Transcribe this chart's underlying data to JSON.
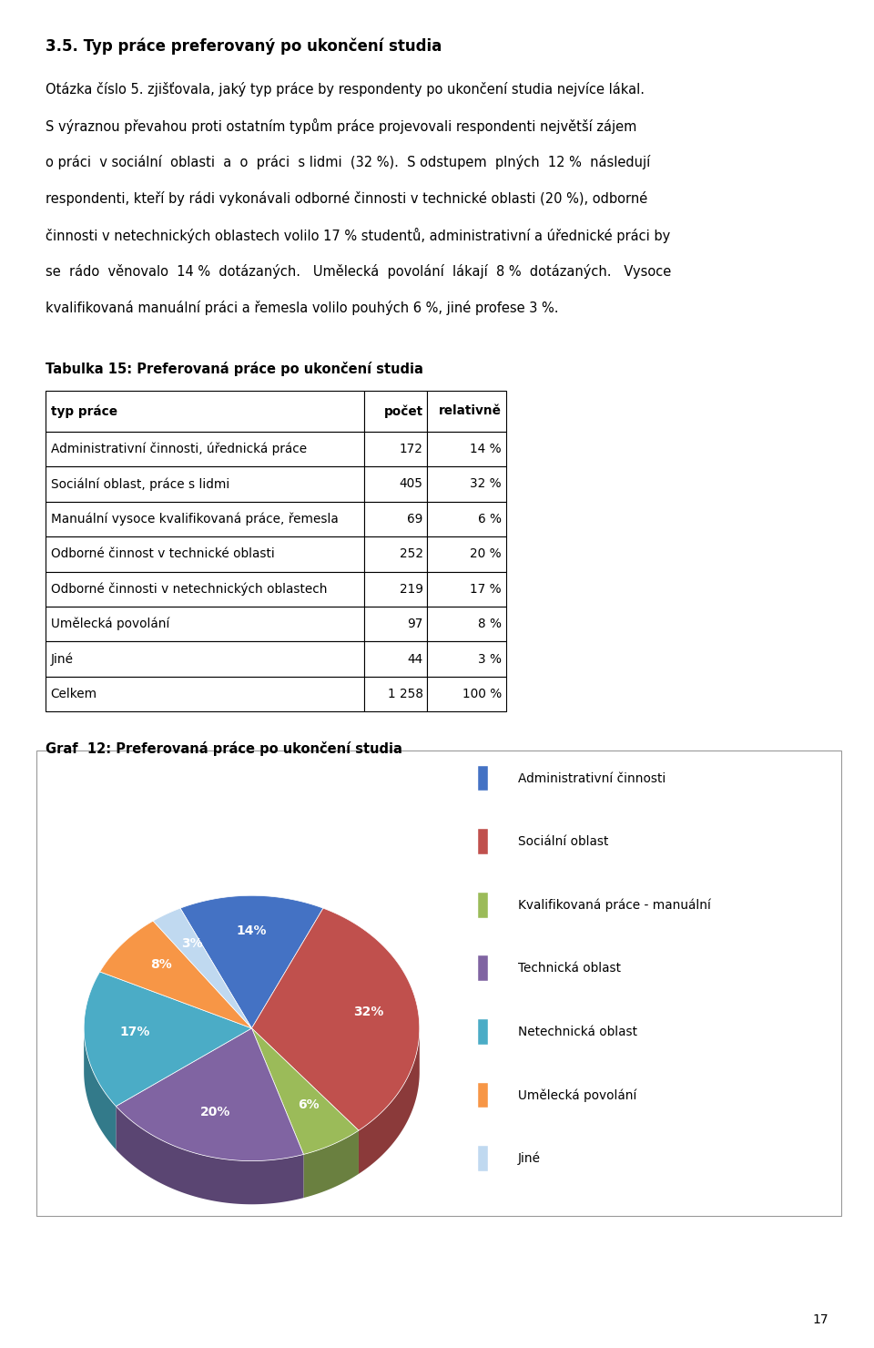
{
  "title_section": "3.5. Typ práce preferovaný po ukončení studia",
  "body_text": [
    "Otázka číslo 5. zjišťovala, jaký typ práce by respondenty po ukončení studia nejvíce lákal.",
    "S výraznou převahou proti ostatním typům práce projevovali respondenti největší zájem",
    "o práci  v sociální  oblasti  a  o  práci  s lidmi  (32 %).  S odstupem  plných  12 %  následují",
    "respondenti, kteří by rádi vykonávali odborné činnosti v technické oblasti (20 %), odborné",
    "činnosti v netechnických oblastech volilo 17 % studentů, administrativní a úřednické práci by",
    "se  rádo  věnovalo  14 %  dotázaných.   Umělecká  povolání  lákají  8 %  dotázaných.   Vysoce",
    "kvalifikovaná manuální práci a řemesla volilo pouhých 6 %, jiné profese 3 %."
  ],
  "table_title": "Tabulka 15: Preferovaná práce po ukončení studia",
  "table_headers": [
    "typ práce",
    "počet",
    "relativně"
  ],
  "table_rows": [
    [
      "Administrativní činnosti, úřednická práce",
      "172",
      "14 %"
    ],
    [
      "Sociální oblast, práce s lidmi",
      "405",
      "32 %"
    ],
    [
      "Manuální vysoce kvalifikovaná práce, řemesla",
      "69",
      "6 %"
    ],
    [
      "Odborné činnost v technické oblasti",
      "252",
      "20 %"
    ],
    [
      "Odborné činnosti v netechnických oblastech",
      "219",
      "17 %"
    ],
    [
      "Umělecká povolání",
      "97",
      "8 %"
    ],
    [
      "Jiné",
      "44",
      "3 %"
    ],
    [
      "Celkem",
      "1 258",
      "100 %"
    ]
  ],
  "chart_title": "Graf  12: Preferovaná práce po ukončení studia",
  "pie_labels": [
    "14%",
    "32%",
    "6%",
    "20%",
    "17%",
    "8%",
    "3%"
  ],
  "pie_values": [
    14,
    32,
    6,
    20,
    17,
    8,
    3
  ],
  "pie_colors": [
    "#4472C4",
    "#C0504D",
    "#9BBB59",
    "#8064A2",
    "#4BACC6",
    "#F79646",
    "#C0D9F0"
  ],
  "pie_colors_dark": [
    "#2E4F8A",
    "#8B3A3A",
    "#6A8040",
    "#5A4572",
    "#337A8A",
    "#B06020",
    "#8899BB"
  ],
  "legend_labels": [
    "Administrativní činnosti",
    "Sociální oblast",
    "Kvalifikovaná práce - manuální",
    "Technická oblast",
    "Netechnická oblast",
    "Umělecká povolání",
    "Jiné"
  ],
  "legend_colors": [
    "#4472C4",
    "#C0504D",
    "#9BBB59",
    "#8064A2",
    "#4BACC6",
    "#F79646",
    "#C0D9F0"
  ],
  "page_number": "17",
  "background_color": "#FFFFFF"
}
